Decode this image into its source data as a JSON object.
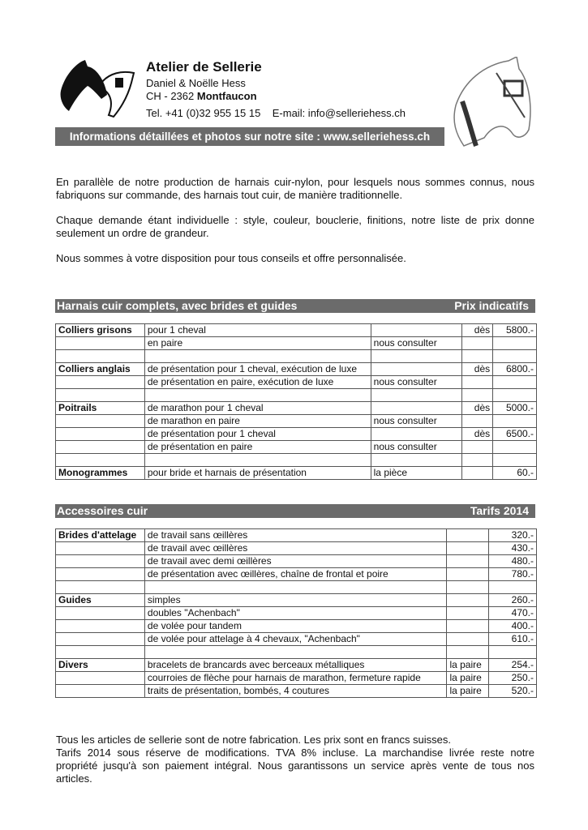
{
  "header": {
    "title": "Atelier de Sellerie",
    "names": "Daniel & Noëlle Hess",
    "address_prefix": "CH - 2362 ",
    "address_city": "Montfaucon",
    "contact": "Tel. +41 (0)32 955 15 15    E-mail: info@selleriehess.ch",
    "banner": "Informations détaillées et photos sur notre site :  www.selleriehess.ch"
  },
  "intro": [
    "En parallèle de notre production de harnais cuir-nylon, pour lesquels nous sommes connus, nous fabriquons sur commande, des harnais tout cuir, de manière traditionnelle.",
    "Chaque demande étant individuelle : style, couleur, bouclerie, finitions, notre liste de prix donne seulement un ordre de grandeur.",
    "Nous sommes à votre disposition pour tous conseils et offre personnalisée."
  ],
  "section1": {
    "title": "Harnais cuir complets, avec brides et guides",
    "right": "Prix indicatifs",
    "rows": [
      [
        "Colliers grisons",
        "pour 1 cheval",
        "",
        "dès",
        "5800.-"
      ],
      [
        "",
        "en paire",
        "nous consulter",
        "",
        ""
      ],
      [
        "",
        "",
        "",
        "",
        ""
      ],
      [
        "Colliers anglais",
        "de présentation pour 1 cheval, exécution de luxe",
        "",
        "dès",
        "6800.-"
      ],
      [
        "",
        "de présentation en paire, exécution de luxe",
        "nous consulter",
        "",
        ""
      ],
      [
        "",
        "",
        "",
        "",
        ""
      ],
      [
        "Poitrails",
        "de marathon pour 1 cheval",
        "",
        "dès",
        "5000.-"
      ],
      [
        "",
        "de marathon en paire",
        "nous consulter",
        "",
        ""
      ],
      [
        "",
        "de présentation pour 1 cheval",
        "",
        "dès",
        "6500.-"
      ],
      [
        "",
        "de présentation en paire",
        "nous consulter",
        "",
        ""
      ],
      [
        "",
        "",
        "",
        "",
        ""
      ],
      [
        "Monogrammes",
        "pour bride et harnais de présentation",
        "la pièce",
        "",
        "60.-"
      ]
    ]
  },
  "section2": {
    "title": "Accessoires cuir",
    "right": "Tarifs 2014",
    "rows": [
      [
        "Brides d'attelage",
        "de travail sans œillères",
        "",
        "320.-"
      ],
      [
        "",
        "de travail avec œillères",
        "",
        "430.-"
      ],
      [
        "",
        "de travail avec demi œillères",
        "",
        "480.-"
      ],
      [
        "",
        "de présentation avec œillères, chaîne de frontal et poire",
        "",
        "780.-"
      ],
      [
        "",
        "",
        "",
        ""
      ],
      [
        "Guides",
        "simples",
        "",
        "260.-"
      ],
      [
        "",
        "doubles \"Achenbach\"",
        "",
        "470.-"
      ],
      [
        "",
        "de volée pour tandem",
        "",
        "400.-"
      ],
      [
        "",
        "de volée pour attelage à 4 chevaux, \"Achenbach\"",
        "",
        "610.-"
      ],
      [
        "",
        "",
        "",
        ""
      ],
      [
        "Divers",
        "bracelets de brancards avec berceaux métalliques",
        "la paire",
        "254.-"
      ],
      [
        "",
        "courroies de flèche pour harnais de marathon, fermeture rapide",
        "la paire",
        "250.-"
      ],
      [
        "",
        "traits de présentation, bombés, 4 coutures",
        "la paire",
        "520.-"
      ]
    ]
  },
  "footer": [
    "Tous les articles de sellerie sont de notre fabrication. Les prix sont en francs suisses.",
    "Tarifs 2014 sous réserve de modifications. TVA 8% incluse. La marchandise livrée reste notre propriété jusqu'à son paiement intégral. Nous garantissons un service après vente de tous nos articles."
  ]
}
